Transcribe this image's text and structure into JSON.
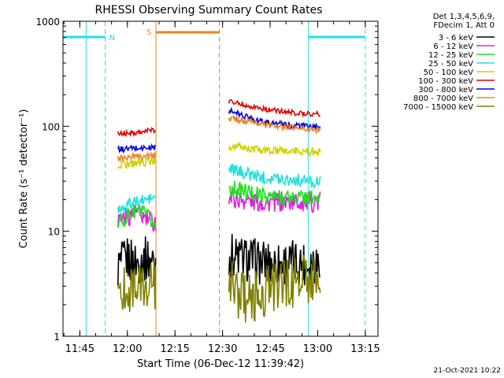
{
  "title": "RHESSI Observing Summary Count Rates",
  "footer_date": "21-Oct-2021 10:22",
  "legend": {
    "header": [
      "Det 1,3,4,5,6,9,",
      "FDecim 1, Att 0"
    ],
    "entries": [
      {
        "label": "3 - 6 keV",
        "color": "#000000"
      },
      {
        "label": "6 - 12 keV",
        "color": "#e020e0"
      },
      {
        "label": "12 - 25 keV",
        "color": "#20e020"
      },
      {
        "label": "25 - 50 keV",
        "color": "#20e0e0"
      },
      {
        "label": "50 - 100 keV",
        "color": "#d0d000"
      },
      {
        "label": "100 - 300 keV",
        "color": "#e00000"
      },
      {
        "label": "300 - 800 keV",
        "color": "#0000e0"
      },
      {
        "label": "800 - 7000 keV",
        "color": "#f08020"
      },
      {
        "label": "7000 - 15000 keV",
        "color": "#808000"
      }
    ]
  },
  "annotations": {
    "night_marker": "N",
    "saa_marker": "S",
    "flag_colors": {
      "night": "#20e0e0",
      "saa": "#f08020"
    }
  },
  "chart_data": {
    "type": "line",
    "title": "RHESSI Observing Summary Count Rates",
    "xlabel": "Start Time (06-Dec-12 11:39:42)",
    "ylabel": "Count Rate (s⁻¹ detector⁻¹)",
    "y_scale": "log",
    "ylim": [
      1,
      1000
    ],
    "xlim": [
      "11:39:42",
      "13:19:00"
    ],
    "x_ticks": [
      "11:45",
      "12:00",
      "12:15",
      "12:30",
      "12:45",
      "13:00",
      "13:15"
    ],
    "y_ticks": [
      "1",
      "10",
      "100",
      "1000"
    ],
    "gaps": [
      {
        "type": "night",
        "start": "11:47",
        "end": "11:53"
      },
      {
        "type": "saa",
        "start": "12:09",
        "end": "12:29"
      },
      {
        "type": "night",
        "start": "12:57",
        "end": "13:15"
      }
    ],
    "series": [
      {
        "name": "3 - 6 keV",
        "segments": [
          {
            "x": [
              "11:57",
              "12:00",
              "12:03",
              "12:06",
              "12:09"
            ],
            "y": [
              4.5,
              5.5,
              5.0,
              5.5,
              5.0
            ]
          },
          {
            "x": [
              "12:32",
              "12:37",
              "12:42",
              "12:47",
              "12:52",
              "12:57",
              "13:01"
            ],
            "y": [
              6.0,
              5.5,
              5.0,
              5.0,
              5.0,
              5.0,
              5.5
            ]
          }
        ]
      },
      {
        "name": "6 - 12 keV",
        "segments": [
          {
            "x": [
              "11:57",
              "12:00",
              "12:03",
              "12:06",
              "12:09"
            ],
            "y": [
              13,
              14,
              15,
              13,
              12
            ]
          },
          {
            "x": [
              "12:32",
              "12:37",
              "12:42",
              "12:47",
              "12:52",
              "12:57",
              "13:01"
            ],
            "y": [
              21,
              20,
              19,
              19,
              19,
              19,
              19
            ]
          }
        ]
      },
      {
        "name": "12 - 25 keV",
        "segments": [
          {
            "x": [
              "11:57",
              "12:00",
              "12:03",
              "12:06",
              "12:09"
            ],
            "y": [
              12,
              14,
              16,
              14,
              11
            ]
          },
          {
            "x": [
              "12:32",
              "12:37",
              "12:42",
              "12:47",
              "12:52",
              "12:57",
              "13:01"
            ],
            "y": [
              26,
              24,
              22,
              21,
              21,
              21,
              20
            ]
          }
        ]
      },
      {
        "name": "25 - 50 keV",
        "segments": [
          {
            "x": [
              "11:57",
              "12:00",
              "12:03",
              "12:06",
              "12:09"
            ],
            "y": [
              16,
              18,
              19,
              20,
              21
            ]
          },
          {
            "x": [
              "12:32",
              "12:37",
              "12:42",
              "12:47",
              "12:52",
              "12:57",
              "13:01"
            ],
            "y": [
              39,
              36,
              33,
              32,
              31,
              30,
              29
            ]
          }
        ]
      },
      {
        "name": "50 - 100 keV",
        "segments": [
          {
            "x": [
              "11:57",
              "12:00",
              "12:03",
              "12:06",
              "12:09"
            ],
            "y": [
              43,
              44,
              45,
              46,
              47
            ]
          },
          {
            "x": [
              "12:32",
              "12:37",
              "12:42",
              "12:47",
              "12:52",
              "12:57",
              "13:01"
            ],
            "y": [
              65,
              62,
              59,
              58,
              58,
              58,
              57
            ]
          }
        ]
      },
      {
        "name": "100 - 300 keV",
        "segments": [
          {
            "x": [
              "11:57",
              "12:00",
              "12:03",
              "12:06",
              "12:09"
            ],
            "y": [
              85,
              86,
              88,
              90,
              92
            ]
          },
          {
            "x": [
              "12:32",
              "12:37",
              "12:42",
              "12:47",
              "12:52",
              "12:57",
              "13:01"
            ],
            "y": [
              175,
              160,
              148,
              140,
              135,
              132,
              130
            ]
          }
        ]
      },
      {
        "name": "300 - 800 keV",
        "segments": [
          {
            "x": [
              "11:57",
              "12:00",
              "12:03",
              "12:06",
              "12:09"
            ],
            "y": [
              60,
              61,
              62,
              62,
              63
            ]
          },
          {
            "x": [
              "12:32",
              "12:37",
              "12:42",
              "12:47",
              "12:52",
              "12:57",
              "13:01"
            ],
            "y": [
              140,
              125,
              112,
              105,
              102,
              100,
              95
            ]
          }
        ]
      },
      {
        "name": "800 - 7000 keV",
        "segments": [
          {
            "x": [
              "11:57",
              "12:00",
              "12:03",
              "12:06",
              "12:09"
            ],
            "y": [
              50,
              51,
              52,
              52,
              53
            ]
          },
          {
            "x": [
              "12:32",
              "12:37",
              "12:42",
              "12:47",
              "12:52",
              "12:57",
              "13:01"
            ],
            "y": [
              120,
              112,
              105,
              100,
              97,
              95,
              92
            ]
          }
        ]
      },
      {
        "name": "7000 - 15000 keV",
        "segments": [
          {
            "x": [
              "11:57",
              "12:00",
              "12:03",
              "12:06",
              "12:09"
            ],
            "y": [
              2.5,
              3.0,
              3.0,
              2.8,
              3.0
            ]
          },
          {
            "x": [
              "12:32",
              "12:37",
              "12:42",
              "12:47",
              "12:52",
              "12:57",
              "13:01"
            ],
            "y": [
              3.2,
              2.2,
              2.5,
              3.0,
              3.2,
              3.5,
              3.8
            ]
          }
        ]
      }
    ]
  }
}
